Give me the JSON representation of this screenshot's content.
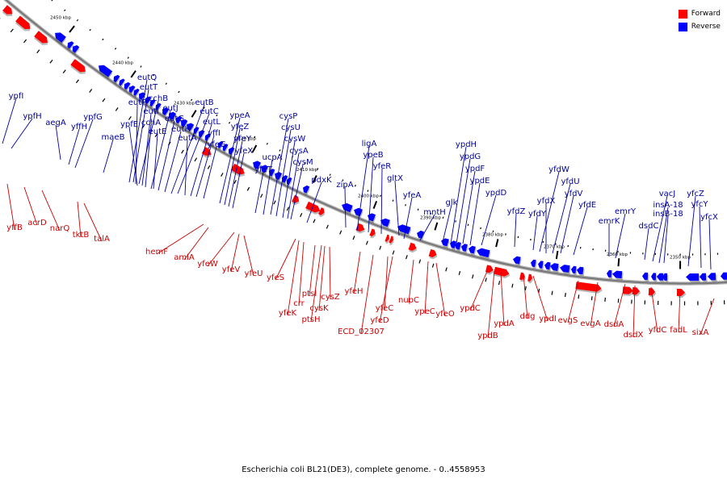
{
  "legend": {
    "forward_label": "Forward",
    "reverse_label": "Reverse",
    "forward_color": "#ff0000",
    "reverse_color": "#0000ff"
  },
  "caption": "Escherichia coli BL21(DE3), complete genome. - 0..4558953",
  "colors": {
    "backbone": "#777777",
    "forward_label": "#cc0000",
    "reverse_label": "#000099",
    "tick": "#000000"
  },
  "position_labels": [
    "2450 kbp",
    "2440 kbp",
    "2430 kbp",
    "2420 kbp",
    "2410 kbp",
    "2400 kbp",
    "2390 kbp",
    "2380 kbp",
    "2370 kbp",
    "2360 kbp",
    "2350 kbp"
  ],
  "reverse_genes": [
    "ypfI",
    "ypfH",
    "aegA",
    "yffH",
    "ypfG",
    "maeB",
    "eutQ",
    "eutT",
    "eutP",
    "cchB",
    "ypfE",
    "eutI",
    "cchA",
    "eutJ",
    "eutE",
    "eutG",
    "eutH",
    "eutB",
    "eutC",
    "eutA",
    "eutL",
    "yffI",
    "yfeG",
    "ypeA",
    "yfeZ",
    "yfeY",
    "yfeX",
    "yfeT",
    "ucpA",
    "cysP",
    "cysU",
    "cysW",
    "cysA",
    "cysM",
    "pdxK",
    "zipA",
    "ligA",
    "ypeB",
    "yfeR",
    "gltX",
    "yfeA",
    "mntH",
    "glk",
    "ypdH",
    "ypdG",
    "ypdF",
    "ypdE",
    "ypdD",
    "yfdZ",
    "yfdY",
    "yfdW",
    "yfdX",
    "yfdU",
    "yfdV",
    "yfdE",
    "emrK",
    "emrY",
    "dsdC",
    "vacJ",
    "insA-18",
    "insB-18",
    "yfcZ",
    "yfcY",
    "yfcX"
  ],
  "forward_genes": [
    "yffB",
    "acrD",
    "narQ",
    "tktB",
    "talA",
    "hemF",
    "amiA",
    "yfeW",
    "yfeV",
    "yfeU",
    "yfeS",
    "yfeK",
    "crr",
    "ptsI",
    "ptsH",
    "cysK",
    "cysZ",
    "yfeH",
    "ECD_02307",
    "yfeC",
    "yfeD",
    "nupC",
    "ypeC",
    "yfeO",
    "ypdC",
    "ypdB",
    "ypdA",
    "ddg",
    "ypdI",
    "evgS",
    "evgA",
    "dsdA",
    "dsdX",
    "yfdC",
    "fadL",
    "sixA"
  ]
}
